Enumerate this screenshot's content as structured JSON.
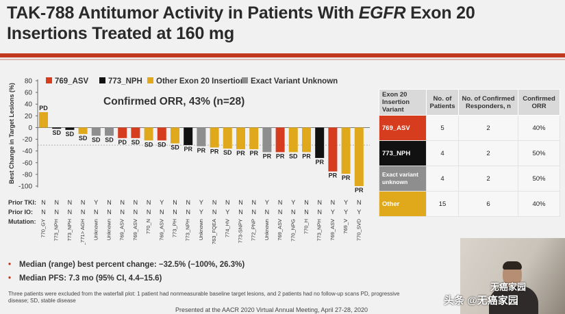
{
  "title": {
    "line1_before": "TAK-788 Antitumor Activity in Patients With ",
    "line1_italic": "EGFR",
    "line1_after": " Exon 20",
    "line2": "Insertions Treated at 160 mg"
  },
  "colors": {
    "asv": "#d63c1e",
    "nph": "#111111",
    "other": "#e0a91b",
    "unknown": "#8e8e8e",
    "accent": "#c0391f"
  },
  "chart_data": {
    "type": "bar",
    "ylabel": "Best Change in Target Lesions (%)",
    "ylim": [
      -110,
      80
    ],
    "yticks": [
      80,
      60,
      40,
      20,
      0,
      -20,
      -40,
      -60,
      -80,
      -100
    ],
    "legend": [
      {
        "key": "asv",
        "label": "769_ASV"
      },
      {
        "key": "nph",
        "label": "773_NPH"
      },
      {
        "key": "other",
        "label": "Other Exon 20 Insertion"
      },
      {
        "key": "unknown",
        "label": "Exact Variant Unknown"
      }
    ],
    "annotation": "Confirmed ORR, 43% (n=28)",
    "bars": [
      {
        "mutation": "770_GY",
        "value": 26.3,
        "group": "other",
        "response": "PD",
        "prior_tki": "N",
        "prior_io": "N"
      },
      {
        "mutation": "773_NPH",
        "value": -2,
        "group": "nph",
        "response": "SD",
        "prior_tki": "N",
        "prior_io": "N"
      },
      {
        "mutation": "773_NPH",
        "value": -4,
        "group": "nph",
        "response": "SD",
        "prior_tki": "N",
        "prior_io": "N"
      },
      {
        "mutation": "770_771> AGH",
        "value": -11,
        "group": "other",
        "response": "SD",
        "prior_tki": "N",
        "prior_io": "N"
      },
      {
        "mutation": "Unknown",
        "value": -14,
        "group": "unknown",
        "response": "SD",
        "prior_tki": "Y",
        "prior_io": "N"
      },
      {
        "mutation": "Unknown",
        "value": -14,
        "group": "unknown",
        "response": "SD",
        "prior_tki": "N",
        "prior_io": "N"
      },
      {
        "mutation": "769_ASV",
        "value": -18,
        "group": "asv",
        "response": "PD",
        "prior_tki": "N",
        "prior_io": "N"
      },
      {
        "mutation": "769_ASV",
        "value": -18,
        "group": "asv",
        "response": "SD",
        "prior_tki": "N",
        "prior_io": "N"
      },
      {
        "mutation": "770_N",
        "value": -22,
        "group": "other",
        "response": "SD",
        "prior_tki": "N",
        "prior_io": "N"
      },
      {
        "mutation": "769_ASV",
        "value": -22,
        "group": "asv",
        "response": "SD",
        "prior_tki": "Y",
        "prior_io": "N"
      },
      {
        "mutation": "773_PH",
        "value": -27,
        "group": "other",
        "response": "SD",
        "prior_tki": "N",
        "prior_io": "N"
      },
      {
        "mutation": "773_NPH",
        "value": -30,
        "group": "nph",
        "response": "PR",
        "prior_tki": "N",
        "prior_io": "N"
      },
      {
        "mutation": "Unknown",
        "value": -32,
        "group": "unknown",
        "response": "PR",
        "prior_tki": "Y",
        "prior_io": "Y"
      },
      {
        "mutation": "763_FQEA",
        "value": -34,
        "group": "other",
        "response": "PR",
        "prior_tki": "N",
        "prior_io": "N"
      },
      {
        "mutation": "774_HV",
        "value": -36,
        "group": "other",
        "response": "SD",
        "prior_tki": "N",
        "prior_io": "Y"
      },
      {
        "mutation": "773-SNPY",
        "value": -37,
        "group": "other",
        "response": "PR",
        "prior_tki": "N",
        "prior_io": "N"
      },
      {
        "mutation": "772_PNP",
        "value": -37,
        "group": "other",
        "response": "PR",
        "prior_tki": "N",
        "prior_io": "N"
      },
      {
        "mutation": "Unknown",
        "value": -42,
        "group": "unknown",
        "response": "PR",
        "prior_tki": "Y",
        "prior_io": "N"
      },
      {
        "mutation": "769_ASV",
        "value": -42,
        "group": "asv",
        "response": "PR",
        "prior_tki": "N",
        "prior_io": "N"
      },
      {
        "mutation": "770_NPG",
        "value": -42,
        "group": "other",
        "response": "SD",
        "prior_tki": "Y",
        "prior_io": "N"
      },
      {
        "mutation": "770_H",
        "value": -42,
        "group": "other",
        "response": "PR",
        "prior_tki": "N",
        "prior_io": "N"
      },
      {
        "mutation": "773_NPH",
        "value": -52,
        "group": "nph",
        "response": "PR",
        "prior_tki": "N",
        "prior_io": "N"
      },
      {
        "mutation": "769_ASV",
        "value": -75,
        "group": "asv",
        "response": "PR",
        "prior_tki": "N",
        "prior_io": "Y"
      },
      {
        "mutation": "769_V",
        "value": -79,
        "group": "other",
        "response": "PR",
        "prior_tki": "Y",
        "prior_io": "Y"
      },
      {
        "mutation": "770_SVD",
        "value": -100,
        "group": "other",
        "response": "PR",
        "prior_tki": "N",
        "prior_io": "Y"
      }
    ]
  },
  "row_labels": {
    "prior_tki": "Prior TKI:",
    "prior_io": "Prior IO:",
    "mutation": "Mutation:"
  },
  "variant_table": {
    "headers": [
      "Exon 20 Insertion Variant",
      "No. of Patients",
      "No. of Confirmed Responders, n",
      "Confirmed ORR"
    ],
    "rows": [
      {
        "variant": "769_ASV",
        "patients": "5",
        "responders": "2",
        "orr": "40%",
        "color": "#d63c1e",
        "text_color": "#ffffff"
      },
      {
        "variant": "773_NPH",
        "patients": "4",
        "responders": "2",
        "orr": "50%",
        "color": "#111111",
        "text_color": "#ffffff"
      },
      {
        "variant": "Exact variant unknown",
        "patients": "4",
        "responders": "2",
        "orr": "50%",
        "color": "#8e8e8e",
        "text_color": "#ffffff"
      },
      {
        "variant": "Other",
        "patients": "15",
        "responders": "6",
        "orr": "40%",
        "color": "#e0a91b",
        "text_color": "#ffffff"
      }
    ]
  },
  "bullets": [
    "Median (range) best percent change: −32.5% (−100%, 26.3%)",
    "Median PFS: 7.3 mo (95% CI, 4.4–15.6)"
  ],
  "footnote": "Three patients were excluded from the waterfall plot: 1 patient had nonmeasurable baseline target lesions, and 2 patients had no follow-up scans PD, progressive disease; SD, stable disease",
  "presented": "Presented at the AACR 2020 Virtual Annual Meeting, April 27-28, 2020",
  "watermark": {
    "main": "头条 @无癌家园",
    "top": "无癌家园"
  }
}
